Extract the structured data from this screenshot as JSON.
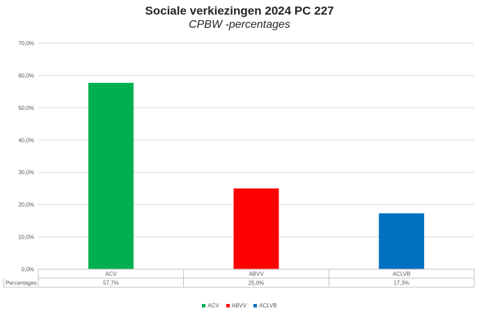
{
  "chart_data": {
    "type": "bar",
    "title": "Sociale verkiezingen 2024 PC 227",
    "subtitle": "CPBW -percentages",
    "categories": [
      "ACV",
      "ABVV",
      "ACLVB"
    ],
    "values": [
      57.7,
      25.0,
      17.3
    ],
    "value_labels": [
      "57,7%",
      "25,0%",
      "17,3%"
    ],
    "colors": [
      "#00b050",
      "#ff0000",
      "#0070c0"
    ],
    "ylim": [
      0,
      70
    ],
    "yticks": [
      "0,0%",
      "10,0%",
      "20,0%",
      "30,0%",
      "40,0%",
      "50,0%",
      "60,0%",
      "70,0%"
    ],
    "table_row_label": "Percentages",
    "grid": true,
    "legend_position": "bottom"
  }
}
